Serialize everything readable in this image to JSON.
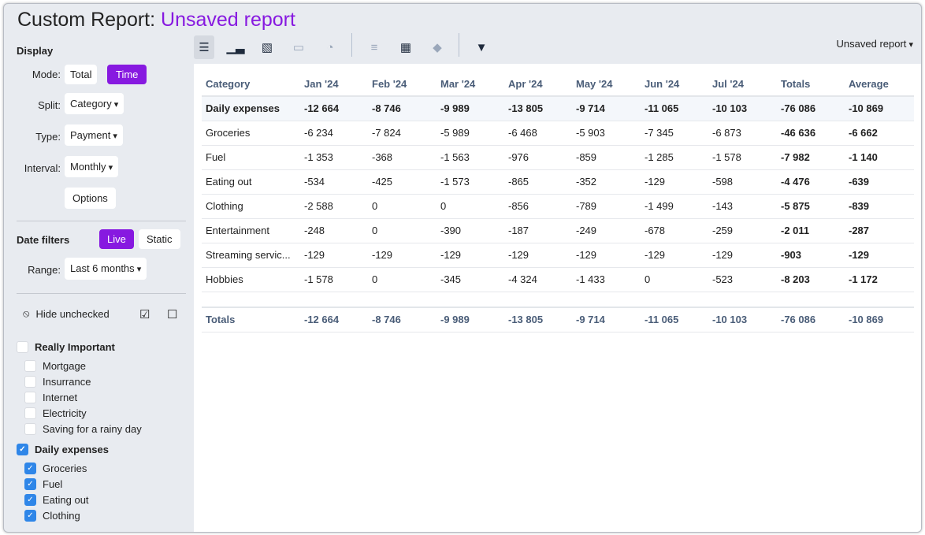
{
  "title": {
    "prefix": "Custom Report:",
    "name": "Unsaved report"
  },
  "sidebar": {
    "display_heading": "Display",
    "mode_label": "Mode:",
    "mode_options": [
      "Total",
      "Time"
    ],
    "mode_selected": "Time",
    "split_label": "Split:",
    "split_value": "Category",
    "type_label": "Type:",
    "type_value": "Payment",
    "interval_label": "Interval:",
    "interval_value": "Monthly",
    "options_label": "Options",
    "date_filters_heading": "Date filters",
    "date_options": [
      "Live",
      "Static"
    ],
    "date_selected": "Live",
    "range_label": "Range:",
    "range_value": "Last 6 months",
    "hide_unchecked": "Hide unchecked",
    "groups": [
      {
        "name": "Really Important",
        "checked": false,
        "items": [
          {
            "name": "Mortgage",
            "checked": false
          },
          {
            "name": "Insurrance",
            "checked": false
          },
          {
            "name": "Internet",
            "checked": false
          },
          {
            "name": "Electricity",
            "checked": false
          },
          {
            "name": "Saving for a rainy day",
            "checked": false
          }
        ]
      },
      {
        "name": "Daily expenses",
        "checked": true,
        "items": [
          {
            "name": "Groceries",
            "checked": true
          },
          {
            "name": "Fuel",
            "checked": true
          },
          {
            "name": "Eating out",
            "checked": true
          },
          {
            "name": "Clothing",
            "checked": true
          }
        ]
      }
    ]
  },
  "toolbar": {
    "icons": [
      "table-icon",
      "bar-chart-icon",
      "line-chart-icon",
      "area-chart-icon",
      "pie-chart-icon",
      "list-icon",
      "calculator-icon",
      "tag-icon",
      "filter-icon"
    ],
    "report_menu": "Unsaved report"
  },
  "table": {
    "headers": [
      "Category",
      "Jan '24",
      "Feb '24",
      "Mar '24",
      "Apr '24",
      "May '24",
      "Jun '24",
      "Jul '24",
      "Totals",
      "Average"
    ],
    "rows": [
      {
        "group": true,
        "cells": [
          "Daily expenses",
          "-12 664",
          "-8 746",
          "-9 989",
          "-13 805",
          "-9 714",
          "-11 065",
          "-10 103",
          "-76 086",
          "-10 869"
        ]
      },
      {
        "cells": [
          "Groceries",
          "-6 234",
          "-7 824",
          "-5 989",
          "-6 468",
          "-5 903",
          "-7 345",
          "-6 873",
          "-46 636",
          "-6 662"
        ]
      },
      {
        "cells": [
          "Fuel",
          "-1 353",
          "-368",
          "-1 563",
          "-976",
          "-859",
          "-1 285",
          "-1 578",
          "-7 982",
          "-1 140"
        ]
      },
      {
        "cells": [
          "Eating out",
          "-534",
          "-425",
          "-1 573",
          "-865",
          "-352",
          "-129",
          "-598",
          "-4 476",
          "-639"
        ]
      },
      {
        "cells": [
          "Clothing",
          "-2 588",
          "0",
          "0",
          "-856",
          "-789",
          "-1 499",
          "-143",
          "-5 875",
          "-839"
        ]
      },
      {
        "cells": [
          "Entertainment",
          "-248",
          "0",
          "-390",
          "-187",
          "-249",
          "-678",
          "-259",
          "-2 011",
          "-287"
        ]
      },
      {
        "cells": [
          "Streaming servic...",
          "-129",
          "-129",
          "-129",
          "-129",
          "-129",
          "-129",
          "-129",
          "-903",
          "-129"
        ]
      },
      {
        "cells": [
          "Hobbies",
          "-1 578",
          "0",
          "-345",
          "-4 324",
          "-1 433",
          "0",
          "-523",
          "-8 203",
          "-1 172"
        ]
      }
    ],
    "totals": [
      "Totals",
      "-12 664",
      "-8 746",
      "-9 989",
      "-13 805",
      "-9 714",
      "-11 065",
      "-10 103",
      "-76 086",
      "-10 869"
    ]
  },
  "colors": {
    "accent": "#8719e0",
    "checkbox": "#2f86e8",
    "header_text": "#4a5d78"
  }
}
